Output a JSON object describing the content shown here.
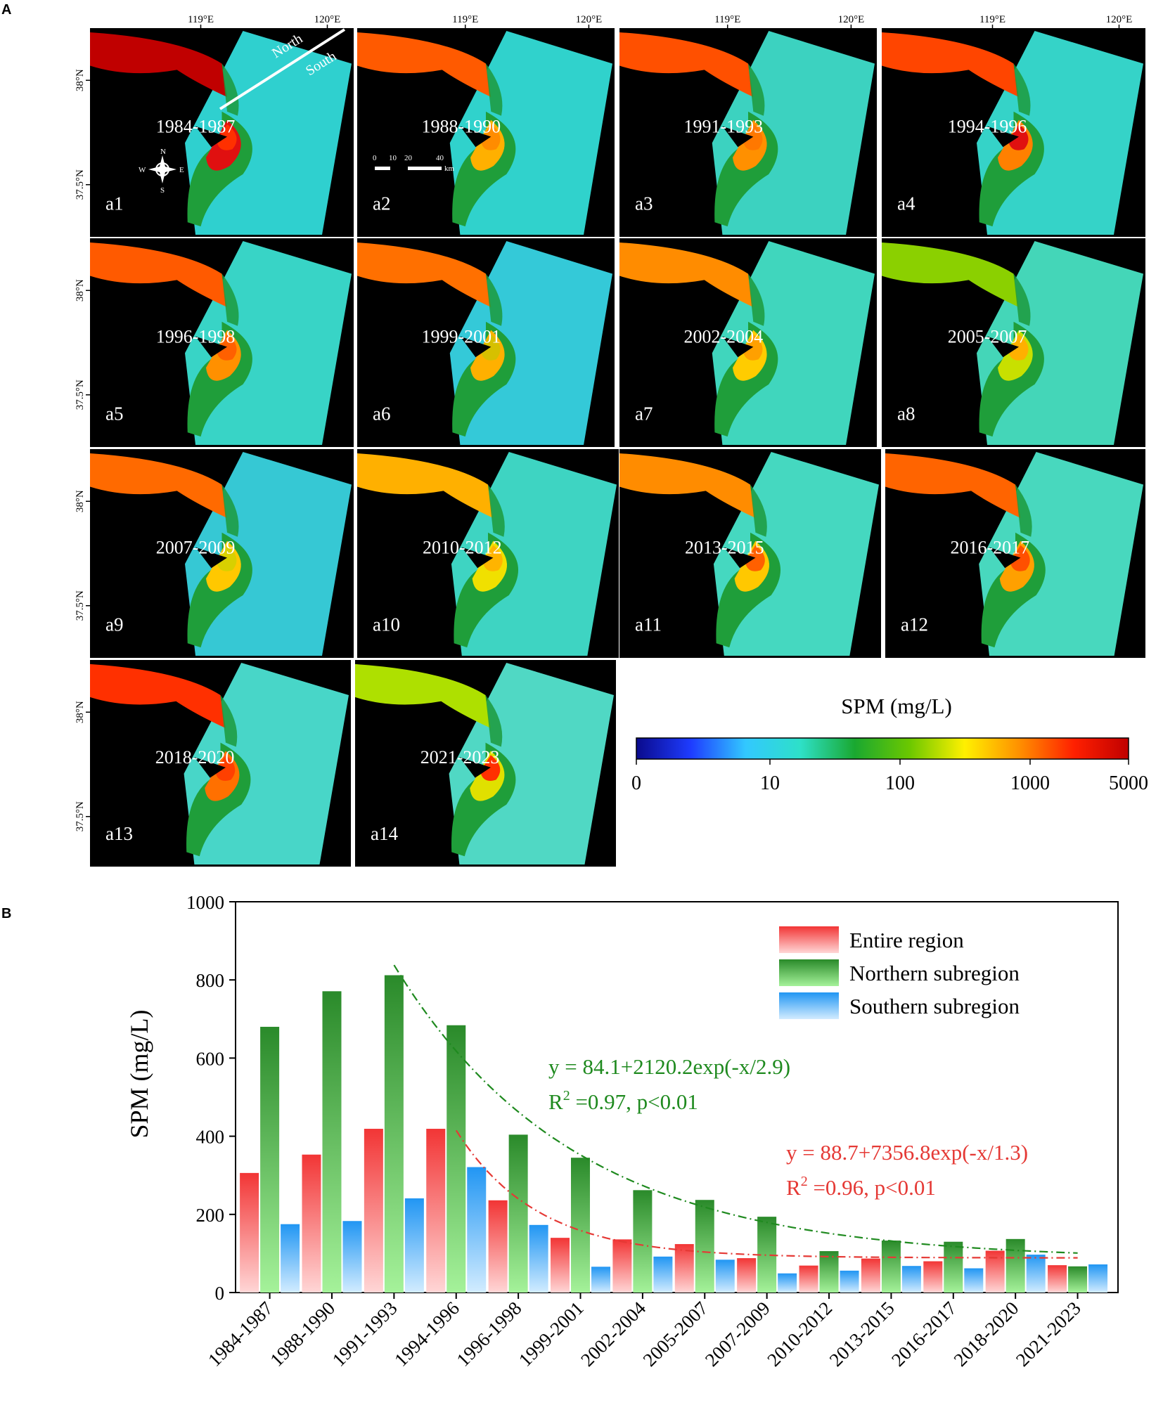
{
  "panel_a_label": "A",
  "panel_b_label": "B",
  "lon_labels": [
    "119°E",
    "120°E"
  ],
  "lat_labels": [
    "38°N",
    "37.5°N"
  ],
  "north_label": "North",
  "south_label": "South",
  "compass": {
    "n": "N",
    "s": "S",
    "e": "E",
    "w": "W"
  },
  "scalebar": {
    "ticks": [
      "0",
      "10",
      "20",
      "40"
    ],
    "unit": "km"
  },
  "maps": [
    {
      "id": "a1",
      "period": "1984-1987",
      "bg": "#2fd0cf",
      "coast": [
        "#c00000",
        "#e01010",
        "#ff3000"
      ]
    },
    {
      "id": "a2",
      "period": "1988-1990",
      "bg": "#30d2cc",
      "coast": [
        "#ff5a00",
        "#ffb000",
        "#ff8c00"
      ]
    },
    {
      "id": "a3",
      "period": "1991-1993",
      "bg": "#3cd2c0",
      "coast": [
        "#ff5000",
        "#ff9000",
        "#ff7800"
      ]
    },
    {
      "id": "a4",
      "period": "1994-1996",
      "bg": "#35d3c8",
      "coast": [
        "#ff4500",
        "#ff8000",
        "#e01010"
      ]
    },
    {
      "id": "a5",
      "period": "1996-1998",
      "bg": "#38d4c6",
      "coast": [
        "#ff5a00",
        "#ff9000",
        "#ff6000"
      ]
    },
    {
      "id": "a6",
      "period": "1999-2001",
      "bg": "#34c9d8",
      "coast": [
        "#ff7000",
        "#ffb000",
        "#d6c000"
      ]
    },
    {
      "id": "a7",
      "period": "2002-2004",
      "bg": "#40d6bd",
      "coast": [
        "#ff8c00",
        "#ffcc00",
        "#ffa000"
      ]
    },
    {
      "id": "a8",
      "period": "2005-2007",
      "bg": "#44d6b8",
      "coast": [
        "#8bd000",
        "#c8e000",
        "#ffb000"
      ]
    },
    {
      "id": "a9",
      "period": "2007-2009",
      "bg": "#36c8d4",
      "coast": [
        "#ff6a00",
        "#ffc800",
        "#d8d000"
      ]
    },
    {
      "id": "a10",
      "period": "2010-2012",
      "bg": "#3ed4c2",
      "coast": [
        "#ffb000",
        "#f0e000",
        "#ffb400"
      ]
    },
    {
      "id": "a11",
      "period": "2013-2015",
      "bg": "#45d8c0",
      "coast": [
        "#ff8c00",
        "#ffc800",
        "#ff6000"
      ]
    },
    {
      "id": "a12",
      "period": "2016-2017",
      "bg": "#48d8be",
      "coast": [
        "#ff6400",
        "#ffa000",
        "#ff5000"
      ]
    },
    {
      "id": "a13",
      "period": "2018-2020",
      "bg": "#48d6c8",
      "coast": [
        "#ff3000",
        "#ff7000",
        "#ff4000"
      ]
    },
    {
      "id": "a14",
      "period": "2021-2023",
      "bg": "#50d8c4",
      "coast": [
        "#aee000",
        "#e0e000",
        "#ff3000"
      ]
    }
  ],
  "colorbar": {
    "title": "SPM (mg/L)",
    "ticks": [
      "0",
      "10",
      "100",
      "1000",
      "5000"
    ],
    "colors": [
      "#0a0a8c",
      "#1e3cff",
      "#32c8ff",
      "#2ee0c8",
      "#1aa830",
      "#6cc800",
      "#fff000",
      "#ff9000",
      "#ff2000",
      "#c00000"
    ]
  },
  "chart_data": {
    "type": "bar",
    "ylabel": "SPM (mg/L)",
    "xlabel": "",
    "ylim": [
      0,
      1000
    ],
    "yticks": [
      0,
      200,
      400,
      600,
      800,
      1000
    ],
    "categories": [
      "1984-1987",
      "1988-1990",
      "1991-1993",
      "1994-1996",
      "1996-1998",
      "1999-2001",
      "2002-2004",
      "2005-2007",
      "2007-2009",
      "2010-2012",
      "2013-2015",
      "2016-2017",
      "2018-2020",
      "2021-2023"
    ],
    "series": [
      {
        "name": "Entire region",
        "color": "#f23535",
        "light": "#ffd6d6",
        "values": [
          306,
          353,
          419,
          419,
          236,
          140,
          136,
          124,
          88,
          69,
          87,
          80,
          107,
          70
        ]
      },
      {
        "name": "Northern subregion",
        "color": "#2a8a2a",
        "light": "#a5f29a",
        "values": [
          680,
          771,
          812,
          684,
          404,
          345,
          262,
          237,
          194,
          106,
          133,
          130,
          137,
          67
        ]
      },
      {
        "name": "Southern subregion",
        "color": "#2196f3",
        "light": "#d2ecff",
        "values": [
          175,
          183,
          241,
          321,
          173,
          66,
          92,
          84,
          49,
          56,
          68,
          62,
          97,
          72
        ]
      }
    ],
    "fits": [
      {
        "equation": "y = 84.1+2120.2exp(-x/2.9)",
        "r2_label": "R",
        "r2_sup": "2",
        "r2_text": " =0.97,  p<0.01",
        "color": "#1f8a1f",
        "a": 84.1,
        "b": 2120.2,
        "tau": 2.9,
        "x_start_index": 2
      },
      {
        "equation": "y = 88.7+7356.8exp(-x/1.3)",
        "r2_label": "R",
        "r2_sup": "2",
        "r2_text": " =0.96,  p<0.01",
        "color": "#e53935",
        "a": 88.7,
        "b": 7356.8,
        "tau": 1.3,
        "x_start_index": 3
      }
    ]
  }
}
